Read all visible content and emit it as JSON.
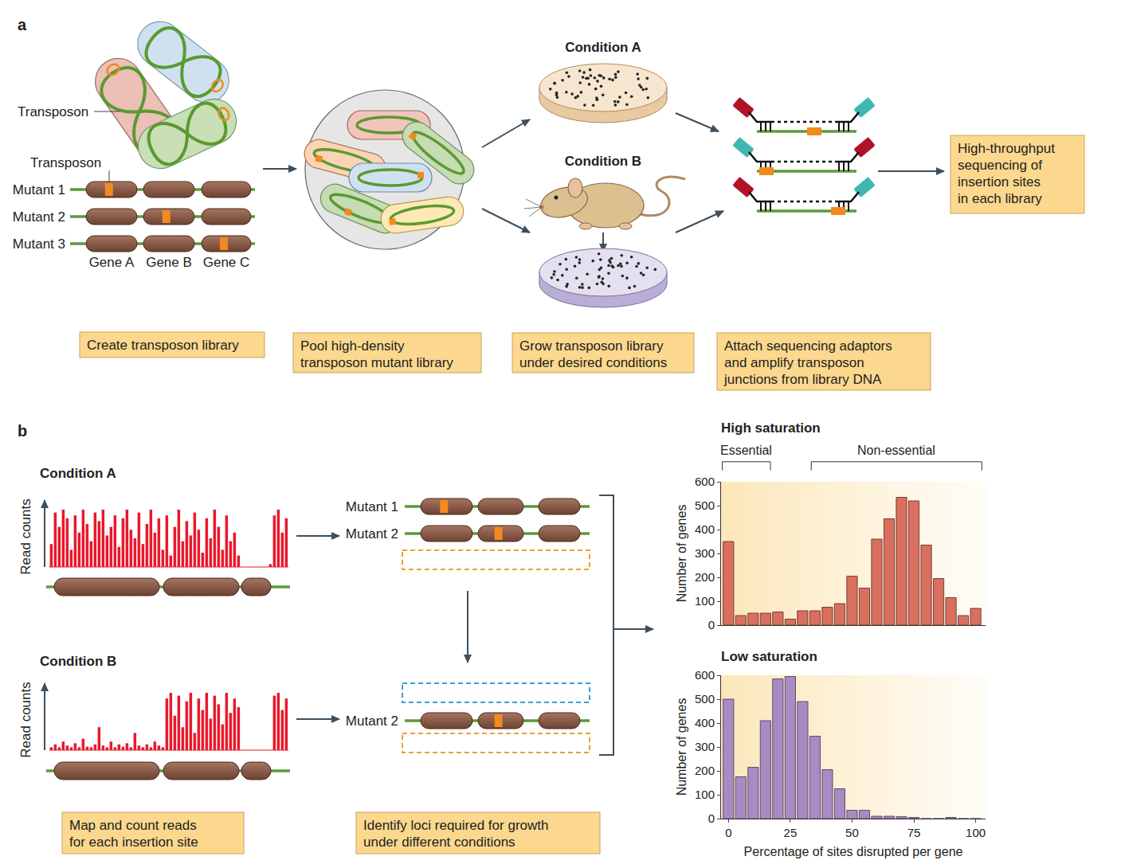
{
  "panel_a": {
    "label": "a",
    "cell_transposon_label": "Transposon",
    "mutant_transposon_label": "Transposon",
    "mutants": [
      {
        "label": "Mutant 1",
        "insertion": 0
      },
      {
        "label": "Mutant 2",
        "insertion": 1
      },
      {
        "label": "Mutant 3",
        "insertion": 2
      }
    ],
    "genes": [
      "Gene A",
      "Gene B",
      "Gene C"
    ],
    "conditions": [
      "Condition A",
      "Condition B"
    ],
    "steps": [
      [
        "Create transposon library"
      ],
      [
        "Pool high-density",
        "transposon mutant library"
      ],
      [
        "Grow transposon library",
        "under desired conditions"
      ],
      [
        "Attach sequencing adaptors",
        "and amplify transposon",
        "junctions from library DNA"
      ],
      [
        "High-throughput",
        "sequencing of",
        "insertion sites",
        "in each library"
      ]
    ]
  },
  "panel_b": {
    "label": "b",
    "y_label": "Read counts",
    "conditions": [
      {
        "name": "Condition A",
        "read_counts": [
          40,
          95,
          70,
          100,
          85,
          30,
          90,
          60,
          100,
          75,
          45,
          95,
          80,
          100,
          55,
          70,
          90,
          35,
          85,
          100,
          65,
          50,
          95,
          40,
          75,
          100,
          60,
          85,
          30,
          90,
          20,
          70,
          100,
          45,
          80,
          55,
          95,
          65,
          25,
          85,
          50,
          100,
          70,
          30,
          90,
          45,
          60,
          20,
          0,
          0,
          0,
          0,
          0,
          0,
          0,
          5,
          90,
          100,
          60,
          85
        ],
        "mutants": [
          {
            "label": "Mutant 1",
            "insertion": 0
          },
          {
            "label": "Mutant 2",
            "insertion": 1
          },
          null
        ]
      },
      {
        "name": "Condition B",
        "read_counts": [
          5,
          10,
          5,
          15,
          8,
          5,
          12,
          5,
          20,
          6,
          5,
          10,
          40,
          8,
          5,
          15,
          5,
          10,
          6,
          12,
          5,
          30,
          8,
          5,
          10,
          5,
          15,
          8,
          5,
          90,
          100,
          60,
          95,
          40,
          85,
          100,
          30,
          90,
          70,
          100,
          55,
          95,
          80,
          45,
          100,
          65,
          90,
          75,
          0,
          0,
          0,
          0,
          0,
          0,
          0,
          0,
          95,
          100,
          70,
          90
        ],
        "mutants": [
          null,
          {
            "label": "Mutant 2",
            "insertion": 1
          },
          null
        ]
      }
    ],
    "steps": [
      [
        "Map and count reads",
        "for each insertion site"
      ],
      [
        "Identify loci required for growth",
        "under different conditions"
      ]
    ]
  },
  "chart_data": [
    {
      "type": "bar",
      "title": "High saturation",
      "x": [
        0,
        5,
        10,
        15,
        20,
        25,
        30,
        35,
        40,
        45,
        50,
        55,
        60,
        65,
        70,
        75,
        80,
        85,
        90,
        95,
        100
      ],
      "values": [
        350,
        40,
        50,
        50,
        55,
        25,
        60,
        60,
        75,
        90,
        205,
        155,
        360,
        445,
        535,
        520,
        335,
        195,
        115,
        40,
        70
      ],
      "color": "#d9705f",
      "xlim": [
        -3,
        104
      ],
      "ylim": [
        0,
        600
      ],
      "yticks": [
        0,
        100,
        200,
        300,
        400,
        500,
        600
      ],
      "y_label": "Number of genes",
      "tick_labels": "y",
      "brackets": [
        {
          "label": "Essential",
          "from": -2.5,
          "to": 17
        },
        {
          "label": "Non-essential",
          "from": 33.5,
          "to": 102.5
        }
      ]
    },
    {
      "type": "bar",
      "title": "Low saturation",
      "x": [
        0,
        5,
        10,
        15,
        20,
        25,
        30,
        35,
        40,
        45,
        50,
        55,
        60,
        65,
        70,
        75,
        80,
        85,
        90,
        95,
        100
      ],
      "values": [
        500,
        175,
        215,
        410,
        585,
        595,
        490,
        345,
        205,
        125,
        35,
        35,
        10,
        10,
        8,
        5,
        0,
        0,
        5,
        0,
        0
      ],
      "color": "#a98bc4",
      "xlim": [
        -3,
        104
      ],
      "ylim": [
        0,
        600
      ],
      "xticks": [
        0,
        25,
        50,
        75,
        100
      ],
      "yticks": [
        0,
        100,
        200,
        300,
        400,
        500,
        600
      ],
      "y_label": "Number of genes",
      "x_label": "Percentage of sites disrupted per gene"
    }
  ]
}
